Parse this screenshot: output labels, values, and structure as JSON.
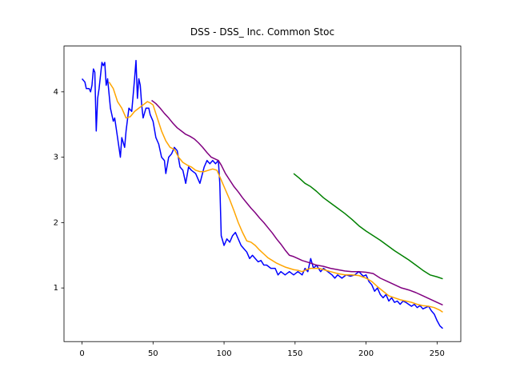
{
  "chart_data": {
    "type": "line",
    "title": "DSS - DSS_ Inc. Common Stoc",
    "xlim": [
      -12.7,
      266.7
    ],
    "xticks": [
      0,
      50,
      100,
      150,
      200,
      250
    ],
    "ylim": [
      0.18,
      4.7
    ],
    "yticks": [
      1,
      2,
      3,
      4
    ],
    "series": [
      {
        "color": "#0000ff",
        "x": [
          0,
          2,
          3,
          5,
          6,
          7,
          8,
          9,
          10,
          11,
          12,
          14,
          15,
          16,
          17,
          18,
          20,
          22,
          23,
          25,
          27,
          28,
          30,
          31,
          33,
          35,
          37,
          38,
          39,
          40,
          41,
          42,
          43,
          45,
          47,
          48,
          50,
          52,
          54,
          56,
          58,
          59,
          61,
          63,
          65,
          67,
          69,
          71,
          73,
          75,
          77,
          80,
          83,
          86,
          88,
          90,
          92,
          94,
          96,
          97,
          98,
          100,
          102,
          104,
          106,
          108,
          110,
          112,
          114,
          116,
          118,
          120,
          122,
          124,
          126,
          128,
          130,
          133,
          136,
          138,
          140,
          143,
          146,
          149,
          152,
          155,
          157,
          159,
          161,
          163,
          165,
          168,
          170,
          173,
          176,
          178,
          180,
          183,
          186,
          189,
          192,
          195,
          198,
          200,
          202,
          204,
          206,
          208,
          210,
          212,
          214,
          216,
          218,
          220,
          222,
          224,
          226,
          228,
          230,
          232,
          234,
          236,
          238,
          240,
          242,
          244,
          246,
          248,
          250,
          252,
          254
        ],
        "values": [
          4.2,
          4.15,
          4.05,
          4.05,
          4.0,
          4.1,
          4.35,
          4.3,
          3.4,
          3.9,
          4.05,
          4.45,
          4.4,
          4.45,
          4.1,
          4.2,
          3.75,
          3.55,
          3.6,
          3.3,
          3.0,
          3.3,
          3.15,
          3.4,
          3.75,
          3.7,
          4.2,
          4.48,
          3.9,
          4.2,
          4.1,
          3.8,
          3.6,
          3.75,
          3.75,
          3.65,
          3.55,
          3.3,
          3.2,
          3.0,
          2.95,
          2.75,
          3.0,
          3.05,
          3.15,
          3.1,
          2.85,
          2.8,
          2.6,
          2.85,
          2.8,
          2.75,
          2.6,
          2.85,
          2.95,
          2.9,
          2.95,
          2.9,
          2.95,
          2.6,
          1.8,
          1.65,
          1.75,
          1.7,
          1.8,
          1.85,
          1.75,
          1.65,
          1.6,
          1.55,
          1.45,
          1.5,
          1.45,
          1.4,
          1.42,
          1.35,
          1.35,
          1.3,
          1.3,
          1.2,
          1.25,
          1.2,
          1.25,
          1.2,
          1.25,
          1.2,
          1.3,
          1.25,
          1.45,
          1.3,
          1.35,
          1.25,
          1.3,
          1.25,
          1.2,
          1.15,
          1.2,
          1.15,
          1.2,
          1.18,
          1.2,
          1.25,
          1.18,
          1.2,
          1.1,
          1.05,
          0.95,
          1.0,
          0.9,
          0.85,
          0.9,
          0.8,
          0.85,
          0.78,
          0.8,
          0.75,
          0.8,
          0.78,
          0.75,
          0.72,
          0.75,
          0.7,
          0.73,
          0.68,
          0.7,
          0.72,
          0.65,
          0.6,
          0.5,
          0.42,
          0.38
        ]
      },
      {
        "color": "#ffa500",
        "x": [
          19,
          22,
          25,
          28,
          31,
          34,
          37,
          40,
          43,
          46,
          48,
          50,
          53,
          56,
          59,
          62,
          65,
          68,
          71,
          74,
          77,
          80,
          83,
          86,
          89,
          92,
          95,
          98,
          101,
          104,
          107,
          110,
          113,
          116,
          119,
          122,
          125,
          128,
          131,
          134,
          137,
          140,
          143,
          146,
          149,
          152,
          155,
          158,
          161,
          164,
          167,
          170,
          175,
          180,
          185,
          190,
          195,
          200,
          204,
          208,
          212,
          216,
          220,
          224,
          228,
          232,
          236,
          240,
          244,
          248,
          252,
          254
        ],
        "values": [
          4.15,
          4.05,
          3.85,
          3.75,
          3.6,
          3.62,
          3.7,
          3.75,
          3.8,
          3.85,
          3.83,
          3.8,
          3.6,
          3.4,
          3.25,
          3.15,
          3.12,
          3.0,
          2.92,
          2.88,
          2.85,
          2.8,
          2.78,
          2.78,
          2.8,
          2.82,
          2.8,
          2.65,
          2.5,
          2.35,
          2.18,
          2.0,
          1.85,
          1.72,
          1.7,
          1.65,
          1.58,
          1.52,
          1.46,
          1.42,
          1.38,
          1.35,
          1.32,
          1.3,
          1.28,
          1.27,
          1.25,
          1.28,
          1.3,
          1.3,
          1.3,
          1.28,
          1.25,
          1.22,
          1.2,
          1.2,
          1.19,
          1.15,
          1.1,
          1.02,
          0.95,
          0.88,
          0.85,
          0.82,
          0.8,
          0.78,
          0.75,
          0.73,
          0.72,
          0.7,
          0.66,
          0.63
        ]
      },
      {
        "color": "#800080",
        "x": [
          49,
          52,
          55,
          58,
          61,
          64,
          67,
          70,
          73,
          76,
          79,
          82,
          85,
          88,
          91,
          94,
          96,
          98,
          101,
          104,
          107,
          110,
          113,
          116,
          119,
          122,
          125,
          128,
          131,
          134,
          137,
          140,
          143,
          146,
          149,
          152,
          155,
          158,
          161,
          165,
          170,
          175,
          180,
          185,
          190,
          195,
          200,
          205,
          210,
          215,
          220,
          225,
          230,
          235,
          240,
          245,
          250,
          254
        ],
        "values": [
          3.87,
          3.82,
          3.75,
          3.67,
          3.6,
          3.52,
          3.45,
          3.4,
          3.35,
          3.32,
          3.28,
          3.22,
          3.15,
          3.07,
          3.0,
          2.97,
          2.95,
          2.88,
          2.75,
          2.65,
          2.55,
          2.47,
          2.38,
          2.3,
          2.22,
          2.15,
          2.07,
          2.0,
          1.92,
          1.84,
          1.75,
          1.67,
          1.58,
          1.5,
          1.48,
          1.45,
          1.42,
          1.4,
          1.38,
          1.35,
          1.33,
          1.3,
          1.28,
          1.26,
          1.25,
          1.25,
          1.24,
          1.22,
          1.15,
          1.1,
          1.05,
          1.0,
          0.97,
          0.93,
          0.88,
          0.83,
          0.78,
          0.74
        ]
      },
      {
        "color": "#008000",
        "x": [
          149,
          153,
          157,
          161,
          165,
          170,
          175,
          180,
          185,
          190,
          195,
          200,
          205,
          210,
          215,
          220,
          225,
          230,
          235,
          240,
          245,
          250,
          254
        ],
        "values": [
          2.75,
          2.68,
          2.6,
          2.55,
          2.48,
          2.38,
          2.3,
          2.22,
          2.14,
          2.05,
          1.95,
          1.87,
          1.8,
          1.73,
          1.65,
          1.57,
          1.5,
          1.43,
          1.35,
          1.27,
          1.2,
          1.17,
          1.14
        ]
      }
    ]
  }
}
